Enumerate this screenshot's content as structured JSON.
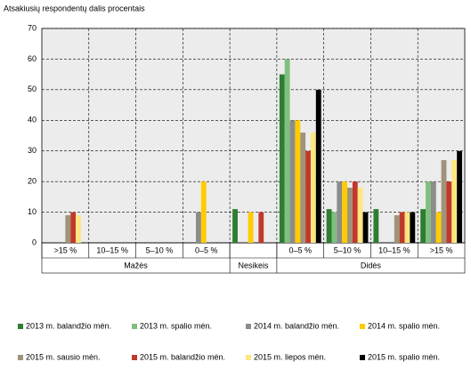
{
  "chart_data": {
    "type": "bar",
    "y_title": "Atsakiusių respondentų dalis procentais",
    "groups": [
      {
        "label": "Mažės",
        "categories": [
          ">15 %",
          "10–15 %",
          "5–10 %",
          "0–5 %"
        ]
      },
      {
        "label": "Nesikeis",
        "categories": [
          null
        ]
      },
      {
        "label": "Didės",
        "categories": [
          "0–5 %",
          "5–10 %",
          "10–15 %",
          ">15 %"
        ]
      }
    ],
    "series": [
      {
        "name": "2013 m. balandžio mėn.",
        "color": "#2e7d32",
        "values": [
          null,
          null,
          null,
          null,
          11,
          55,
          11,
          11,
          11
        ]
      },
      {
        "name": "2013 m. spalio mėn.",
        "color": "#7fbf7f",
        "values": [
          null,
          null,
          null,
          null,
          null,
          60,
          10,
          null,
          20
        ]
      },
      {
        "name": "2014 m. balandžio mėn.",
        "color": "#8c8c8c",
        "values": [
          null,
          null,
          null,
          10,
          null,
          40,
          20,
          null,
          20
        ]
      },
      {
        "name": "2014 m. spalio mėn.",
        "color": "#ffcc00",
        "values": [
          null,
          null,
          null,
          20,
          10,
          40,
          20,
          null,
          10
        ]
      },
      {
        "name": "2015 m. sausio mėn.",
        "color": "#a0937a",
        "values": [
          9,
          null,
          null,
          null,
          null,
          36,
          18,
          9,
          27
        ]
      },
      {
        "name": "2015 m. balandžio mėn.",
        "color": "#c0392b",
        "values": [
          10,
          null,
          null,
          null,
          10,
          30,
          20,
          10,
          20
        ]
      },
      {
        "name": "2015 m. liepos mėn.",
        "color": "#ffe680",
        "values": [
          9,
          null,
          null,
          null,
          null,
          36,
          18,
          10,
          27
        ]
      },
      {
        "name": "2015 m. spalio mėn.",
        "color": "#000000",
        "values": [
          null,
          null,
          null,
          null,
          null,
          50,
          10,
          10,
          30
        ]
      }
    ],
    "ylim": [
      0,
      70
    ],
    "yticks": [
      0,
      10,
      20,
      30,
      40,
      50,
      60,
      70
    ],
    "grid": true
  }
}
